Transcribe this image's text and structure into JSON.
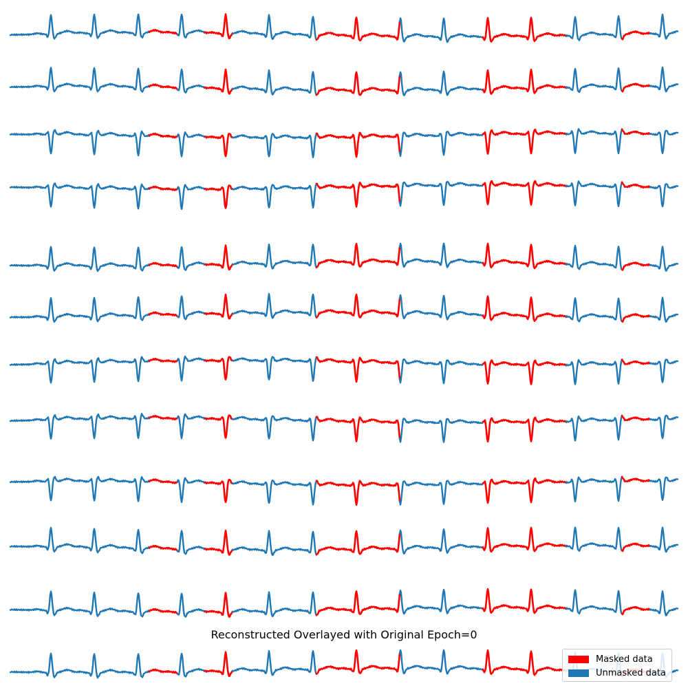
{
  "chart_data": {
    "type": "line",
    "title": "Reconstructed Overlayed with Original Epoch=0",
    "xlabel": "",
    "ylabel": "",
    "grid": false,
    "axes_visible": false,
    "legend_placement": "bottom-right",
    "legend": [
      {
        "label": "Masked data",
        "color": "#ff0000"
      },
      {
        "label": "Unmasked data",
        "color": "#1f77b4"
      }
    ],
    "colors": {
      "masked": "#ff0000",
      "unmasked": "#1f77b4"
    },
    "series": [
      {
        "beat_polarity": "up",
        "masked_segments": [
          [
            5,
            6
          ],
          [
            7,
            8
          ],
          [
            11,
            14
          ],
          [
            17,
            20
          ],
          [
            22,
            23
          ]
        ]
      },
      {
        "beat_polarity": "up",
        "masked_segments": [
          [
            5,
            6
          ],
          [
            7,
            8
          ],
          [
            11,
            14
          ],
          [
            17,
            20
          ],
          [
            22,
            23
          ]
        ]
      },
      {
        "beat_polarity": "down",
        "masked_segments": [
          [
            5,
            6
          ],
          [
            7,
            8
          ],
          [
            11,
            14
          ],
          [
            17,
            20
          ],
          [
            22,
            23
          ]
        ]
      },
      {
        "beat_polarity": "down",
        "masked_segments": [
          [
            5,
            6
          ],
          [
            7,
            8
          ],
          [
            11,
            14
          ],
          [
            17,
            20
          ],
          [
            22,
            23
          ]
        ]
      },
      {
        "beat_polarity": "up",
        "masked_segments": [
          [
            5,
            6
          ],
          [
            7,
            8
          ],
          [
            11,
            14
          ],
          [
            17,
            20
          ],
          [
            22,
            23
          ]
        ]
      },
      {
        "beat_polarity": "up",
        "masked_segments": [
          [
            5,
            6
          ],
          [
            7,
            8
          ],
          [
            11,
            14
          ],
          [
            17,
            20
          ],
          [
            22,
            23
          ]
        ]
      },
      {
        "beat_polarity": "down",
        "masked_segments": [
          [
            5,
            6
          ],
          [
            7,
            8
          ],
          [
            11,
            14
          ],
          [
            17,
            20
          ],
          [
            22,
            23
          ]
        ]
      },
      {
        "beat_polarity": "down",
        "masked_segments": [
          [
            5,
            6
          ],
          [
            7,
            8
          ],
          [
            11,
            14
          ],
          [
            17,
            20
          ],
          [
            22,
            23
          ]
        ]
      },
      {
        "beat_polarity": "down",
        "masked_segments": [
          [
            5,
            6
          ],
          [
            7,
            8
          ],
          [
            11,
            14
          ],
          [
            17,
            20
          ],
          [
            22,
            23
          ]
        ]
      },
      {
        "beat_polarity": "up",
        "masked_segments": [
          [
            5,
            6
          ],
          [
            7,
            8
          ],
          [
            11,
            14
          ],
          [
            17,
            20
          ],
          [
            22,
            23
          ]
        ]
      },
      {
        "beat_polarity": "up",
        "masked_segments": [
          [
            5,
            6
          ],
          [
            7,
            8
          ],
          [
            11,
            14
          ],
          [
            17,
            20
          ],
          [
            22,
            23
          ]
        ]
      },
      {
        "beat_polarity": "up",
        "masked_segments": [
          [
            5,
            6
          ],
          [
            7,
            8
          ],
          [
            11,
            14
          ],
          [
            17,
            20
          ],
          [
            22,
            23
          ]
        ]
      }
    ]
  }
}
